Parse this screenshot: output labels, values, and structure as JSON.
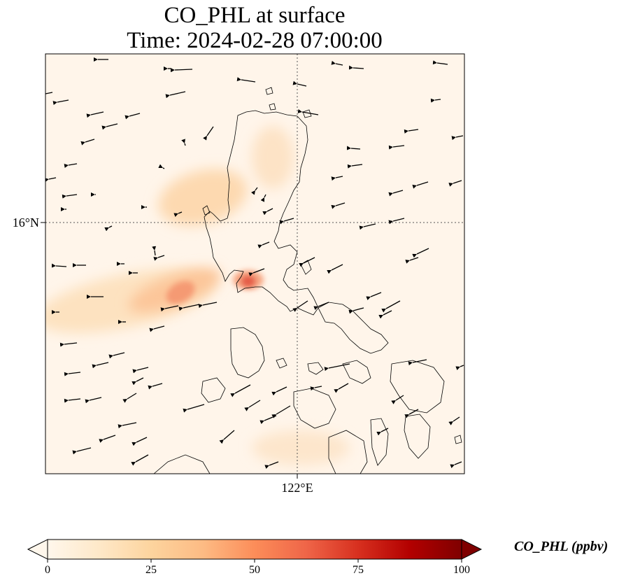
{
  "title": {
    "line1": "CO_PHL at surface",
    "line2": "Time: 2024-02-28 07:00:00"
  },
  "axes": {
    "x_ticks": [
      "122°E"
    ],
    "y_ticks": [
      "16°N"
    ],
    "gridlines": "dotted"
  },
  "colorbar": {
    "label": "CO_PHL (ppbv)",
    "ticks": [
      "0",
      "25",
      "50",
      "75",
      "100"
    ],
    "range": [
      0,
      100
    ],
    "colormap": "OrRd",
    "extend": "both",
    "colors": [
      "#fff7ec",
      "#fee8c8",
      "#fdd49e",
      "#fdbb84",
      "#fc8d59",
      "#ef6548",
      "#d7301f",
      "#b30000",
      "#7f0000"
    ]
  },
  "map": {
    "region": "Luzon, Philippines",
    "field": "surface CO concentration with wind vectors",
    "plume_peak_ppbv": 45,
    "background_ppbv": 2,
    "coastline_color": "#000000",
    "wind_arrow_color": "#000000"
  }
}
